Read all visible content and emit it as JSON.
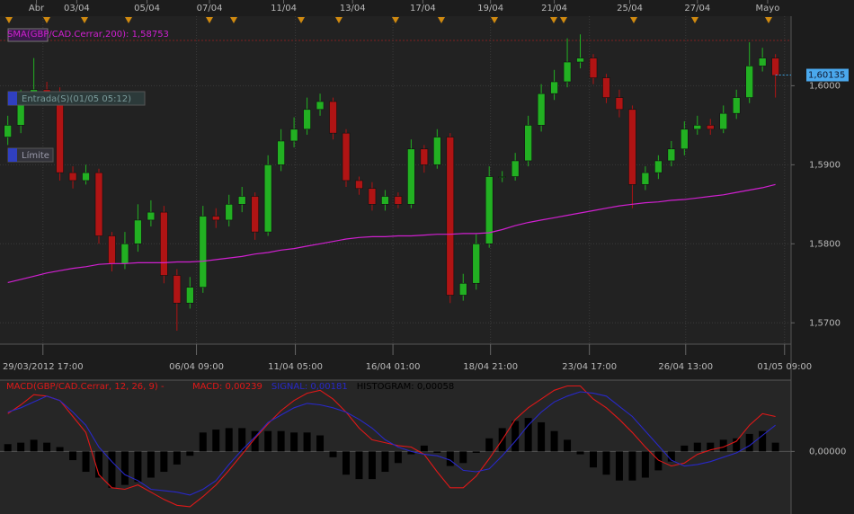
{
  "chart_data": [
    {
      "type": "candlestick",
      "open": [
        1.5935,
        1.595,
        1.5985,
        1.5995,
        1.599,
        1.589,
        1.588,
        1.589,
        1.581,
        1.5775,
        1.58,
        1.583,
        1.584,
        1.576,
        1.5725,
        1.5745,
        1.5835,
        1.583,
        1.585,
        1.586,
        1.5815,
        1.59,
        1.593,
        1.5945,
        1.597,
        1.598,
        1.594,
        1.588,
        1.587,
        1.585,
        1.586,
        1.585,
        1.592,
        1.59,
        1.5935,
        1.5735,
        1.575,
        1.58,
        1.5885,
        1.5885,
        1.5905,
        1.595,
        1.599,
        1.6005,
        1.603,
        1.6035,
        1.601,
        1.5985,
        1.597,
        1.5875,
        1.589,
        1.5905,
        1.592,
        1.5945,
        1.595,
        1.5945,
        1.5965,
        1.5985,
        1.6025,
        1.6035
      ],
      "high": [
        1.5962,
        1.5995,
        1.6035,
        1.6005,
        1.5998,
        1.5898,
        1.59,
        1.5895,
        1.5815,
        1.5815,
        1.585,
        1.5855,
        1.5848,
        1.5768,
        1.5758,
        1.5848,
        1.5845,
        1.5862,
        1.5872,
        1.5865,
        1.5912,
        1.5945,
        1.596,
        1.5985,
        1.599,
        1.5985,
        1.5945,
        1.5885,
        1.5878,
        1.5868,
        1.5865,
        1.5932,
        1.5925,
        1.5945,
        1.594,
        1.5762,
        1.5812,
        1.5898,
        1.5892,
        1.5915,
        1.5962,
        1.6002,
        1.602,
        1.606,
        1.6065,
        1.604,
        1.6015,
        1.5995,
        1.5975,
        1.5898,
        1.5912,
        1.593,
        1.5955,
        1.5962,
        1.5958,
        1.5975,
        1.5995,
        1.6055,
        1.6048,
        1.604
      ],
      "low": [
        1.5925,
        1.594,
        1.5975,
        1.598,
        1.588,
        1.587,
        1.5875,
        1.58,
        1.5765,
        1.5768,
        1.579,
        1.5822,
        1.575,
        1.569,
        1.5718,
        1.5738,
        1.582,
        1.5822,
        1.584,
        1.5805,
        1.581,
        1.5892,
        1.5922,
        1.5938,
        1.5962,
        1.5932,
        1.5872,
        1.5862,
        1.5842,
        1.5842,
        1.5845,
        1.5845,
        1.589,
        1.5895,
        1.5725,
        1.5728,
        1.5742,
        1.5795,
        1.5878,
        1.588,
        1.5898,
        1.5942,
        1.5982,
        1.5998,
        1.6022,
        1.6002,
        1.5978,
        1.596,
        1.5845,
        1.5868,
        1.5882,
        1.5898,
        1.5912,
        1.5938,
        1.5938,
        1.594,
        1.5958,
        1.5978,
        1.6018,
        1.5985
      ],
      "close": [
        1.595,
        1.5985,
        1.5995,
        1.599,
        1.589,
        1.588,
        1.589,
        1.581,
        1.5775,
        1.58,
        1.583,
        1.584,
        1.576,
        1.5725,
        1.5745,
        1.5835,
        1.583,
        1.585,
        1.586,
        1.5815,
        1.59,
        1.593,
        1.5945,
        1.597,
        1.598,
        1.594,
        1.588,
        1.587,
        1.585,
        1.586,
        1.585,
        1.592,
        1.59,
        1.5935,
        1.5735,
        1.575,
        1.58,
        1.5885,
        1.5885,
        1.5905,
        1.595,
        1.599,
        1.6005,
        1.603,
        1.6035,
        1.601,
        1.5985,
        1.597,
        1.5875,
        1.589,
        1.5905,
        1.592,
        1.5945,
        1.595,
        1.5945,
        1.5965,
        1.5985,
        1.6025,
        1.6035,
        1.6013
      ],
      "up_color": "#22b022",
      "down_color": "#b01414",
      "overlay": {
        "name": "SMA(GBP/CAD.Cerrar,200): 1,58753",
        "color": "#d020d0",
        "values": [
          1.5751,
          1.5755,
          1.5759,
          1.5763,
          1.5766,
          1.5769,
          1.5771,
          1.5774,
          1.5775,
          1.5775,
          1.5776,
          1.5776,
          1.5776,
          1.5777,
          1.5777,
          1.5778,
          1.578,
          1.5782,
          1.5784,
          1.5787,
          1.5789,
          1.5792,
          1.5794,
          1.5797,
          1.58,
          1.5803,
          1.5806,
          1.5808,
          1.5809,
          1.5809,
          1.581,
          1.581,
          1.5811,
          1.5812,
          1.5812,
          1.5813,
          1.5813,
          1.5814,
          1.5818,
          1.5823,
          1.5827,
          1.583,
          1.5833,
          1.5836,
          1.5839,
          1.5842,
          1.5845,
          1.5848,
          1.585,
          1.5852,
          1.5853,
          1.5855,
          1.5856,
          1.5858,
          1.586,
          1.5862,
          1.5865,
          1.5868,
          1.5871,
          1.5875
        ]
      },
      "ylim": [
        1.5673,
        1.6088
      ],
      "yticks": [
        {
          "value": 1.6,
          "label": "1,6000"
        },
        {
          "value": 1.59,
          "label": "1,5900"
        },
        {
          "value": 1.58,
          "label": "1,5800"
        },
        {
          "value": 1.57,
          "label": "1,5700"
        }
      ],
      "xlim": [
        -0.6,
        60.2
      ],
      "xticks": [
        {
          "value": 2.7,
          "label": "29/03/2012 17:00"
        },
        {
          "value": 14.5,
          "label": "06/04 09:00"
        },
        {
          "value": 22.1,
          "label": "11/04 05:00"
        },
        {
          "value": 29.6,
          "label": "16/04 01:00"
        },
        {
          "value": 37.1,
          "label": "18/04 21:00"
        },
        {
          "value": 44.7,
          "label": "23/04 17:00"
        },
        {
          "value": 52.1,
          "label": "26/04 13:00"
        },
        {
          "value": 59.7,
          "label": "01/05 09:00"
        }
      ],
      "x2ticks": [
        {
          "value": 2.2,
          "label": "Abr"
        },
        {
          "value": 5.3,
          "label": "03/04"
        },
        {
          "value": 10.7,
          "label": "05/04"
        },
        {
          "value": 15.5,
          "label": "07/04"
        },
        {
          "value": 21.2,
          "label": "11/04"
        },
        {
          "value": 26.5,
          "label": "13/04"
        },
        {
          "value": 31.9,
          "label": "17/04"
        },
        {
          "value": 37.1,
          "label": "19/04"
        },
        {
          "value": 42.0,
          "label": "21/04"
        },
        {
          "value": 47.8,
          "label": "25/04"
        },
        {
          "value": 53.0,
          "label": "27/04"
        },
        {
          "value": 58.4,
          "label": "Mayo"
        }
      ],
      "last_price": {
        "value": 1.60135,
        "label": "1,60135"
      },
      "annotations": [
        "Entrada(S)(01/05 05:12)",
        "Límite"
      ],
      "grid": true
    },
    {
      "type": "macd",
      "title": "MACD(GBP/CAD.Cerrar, 12, 26, 9) -",
      "series": [
        {
          "name": "HISTOGRAM: 0,00058",
          "color": "#000000",
          "kind": "bar",
          "values": [
            0.0005,
            0.0006,
            0.0008,
            0.0006,
            0.0003,
            -0.0006,
            -0.0014,
            -0.0018,
            -0.0025,
            -0.0023,
            -0.0021,
            -0.0018,
            -0.0014,
            -0.0009,
            -0.0003,
            0.0013,
            0.0015,
            0.0016,
            0.0016,
            0.0014,
            0.0014,
            0.0014,
            0.0013,
            0.0013,
            0.0011,
            -0.0004,
            -0.0016,
            -0.0019,
            -0.0019,
            -0.0014,
            -0.0008,
            -0.0002,
            0.0004,
            -0.0001,
            -0.001,
            -0.0008,
            -0.0001,
            0.0009,
            0.0016,
            0.0021,
            0.0023,
            0.002,
            0.0014,
            0.0008,
            -0.0002,
            -0.0011,
            -0.0016,
            -0.002,
            -0.002,
            -0.0018,
            -0.0013,
            -0.0007,
            0.0004,
            0.0006,
            0.0006,
            0.0008,
            0.0009,
            0.0012,
            0.0014,
            0.0006
          ]
        },
        {
          "name": "MACD: 0,00239",
          "color": "#e01818",
          "kind": "line",
          "values": [
            0.0026,
            0.0032,
            0.0039,
            0.0038,
            0.0035,
            0.0024,
            0.0013,
            -0.0016,
            -0.0025,
            -0.0026,
            -0.0023,
            -0.0028,
            -0.0033,
            -0.0037,
            -0.0038,
            -0.0031,
            -0.0023,
            -0.0013,
            -0.0002,
            0.0009,
            0.0019,
            0.0028,
            0.0035,
            0.004,
            0.0042,
            0.0036,
            0.0027,
            0.0016,
            0.0008,
            0.0006,
            0.0004,
            0.0003,
            -0.0002,
            -0.0014,
            -0.0025,
            -0.0025,
            -0.0017,
            -0.0005,
            0.0008,
            0.0022,
            0.003,
            0.0036,
            0.0042,
            0.0045,
            0.0045,
            0.0036,
            0.003,
            0.0022,
            0.0013,
            0.0003,
            -0.0006,
            -0.001,
            -0.0008,
            -0.0002,
            0.0001,
            0.0003,
            0.0007,
            0.0018,
            0.0026,
            0.0024
          ]
        },
        {
          "name": "SIGNAL: 0,00181",
          "color": "#2828c8",
          "kind": "line",
          "values": [
            0.0027,
            0.003,
            0.0034,
            0.0038,
            0.0035,
            0.0027,
            0.0018,
            0.0003,
            -0.0007,
            -0.0016,
            -0.002,
            -0.0026,
            -0.0027,
            -0.0028,
            -0.003,
            -0.0026,
            -0.002,
            -0.0009,
            0.0001,
            0.001,
            0.002,
            0.0025,
            0.003,
            0.0033,
            0.0032,
            0.003,
            0.0027,
            0.0022,
            0.0016,
            0.0008,
            0.0003,
            0.0,
            -0.0002,
            -0.0003,
            -0.0006,
            -0.0013,
            -0.0014,
            -0.0012,
            -0.0003,
            0.0007,
            0.0018,
            0.0027,
            0.0034,
            0.0038,
            0.0041,
            0.004,
            0.0038,
            0.0031,
            0.0024,
            0.0014,
            0.0004,
            -0.0006,
            -0.001,
            -0.0009,
            -0.0007,
            -0.0004,
            -0.0001,
            0.0004,
            0.0011,
            0.0018
          ]
        }
      ],
      "ylim": [
        -0.0043,
        0.0049
      ],
      "yticks": [
        {
          "value": 0,
          "label": "0,00000"
        }
      ]
    }
  ]
}
